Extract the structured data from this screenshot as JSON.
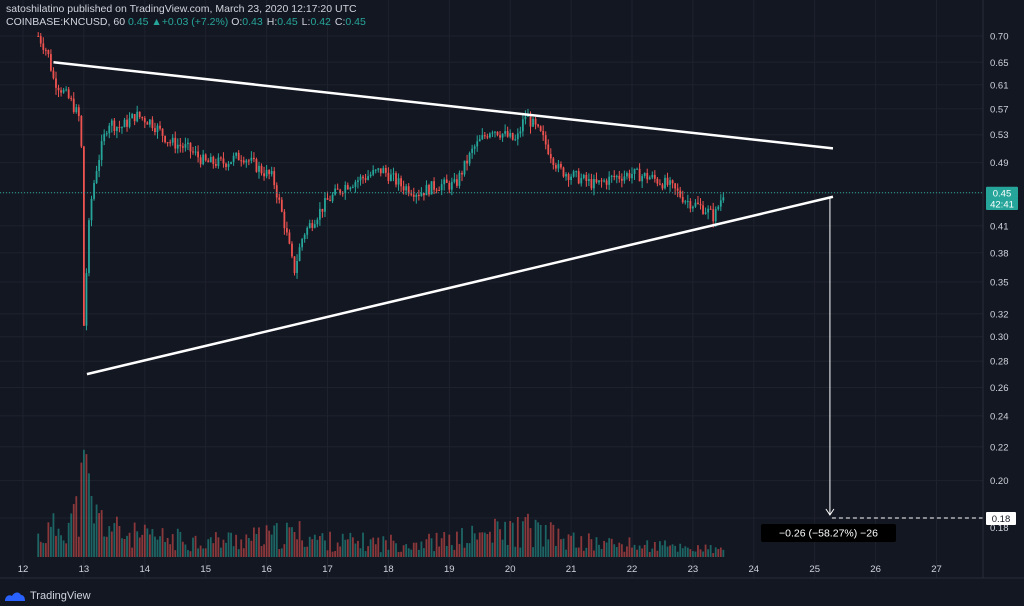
{
  "header": {
    "publisher_line": "satoshilatino published on TradingView.com, March 23, 2020 12:17:20 UTC",
    "symbol": "COINBASE:KNCUSD, 60",
    "last": "0.45",
    "change_arrow": "▲",
    "change": "+0.03 (+7.2%)",
    "o_label": "O:",
    "o_value": "0.43",
    "h_label": "H:",
    "h_value": "0.45",
    "l_label": "L:",
    "l_value": "0.42",
    "c_label": "C:",
    "c_value": "0.45"
  },
  "footer": {
    "brand": "TradingView",
    "icon": "tradingview-logo-icon"
  },
  "chart_data": {
    "type": "candlestick",
    "symbol": "COINBASE:KNCUSD",
    "interval": "60",
    "y_axis_labels": [
      "0.70",
      "0.65",
      "0.61",
      "0.57",
      "0.53",
      "0.49",
      "0.45",
      "0.41",
      "0.38",
      "0.35",
      "0.32",
      "0.30",
      "0.28",
      "0.26",
      "0.24",
      "0.22",
      "0.20",
      "0.18"
    ],
    "x_axis_labels": [
      "12",
      "13",
      "14",
      "15",
      "16",
      "17",
      "18",
      "19",
      "20",
      "21",
      "22",
      "23",
      "24",
      "25",
      "26",
      "27"
    ],
    "price_axis_scale": "log",
    "last_price_label": "0.45",
    "countdown_label": "42:41",
    "target_price_label": "0.18",
    "measure_label": "−0.26 (−58.27%) −26",
    "colors": {
      "up": "#26a69a",
      "down": "#ef5350",
      "background": "#131722",
      "trendline": "#ffffff",
      "grid": "#1e222d"
    },
    "trendlines": [
      {
        "name": "upper-trendline",
        "from": {
          "day": 12.5,
          "price": 0.65
        },
        "to": {
          "day": 25.3,
          "price": 0.51
        }
      },
      {
        "name": "lower-trendline",
        "from": {
          "day": 13.05,
          "price": 0.27
        },
        "to": {
          "day": 25.3,
          "price": 0.445
        }
      }
    ],
    "projection": {
      "from": {
        "day": 25.25,
        "price": 0.445
      },
      "to": {
        "day": 25.25,
        "price": 0.18
      }
    },
    "price_path": [
      [
        12.25,
        0.7
      ],
      [
        12.4,
        0.67
      ],
      [
        12.5,
        0.62
      ],
      [
        12.65,
        0.6
      ],
      [
        12.8,
        0.58
      ],
      [
        12.95,
        0.55
      ],
      [
        13.0,
        0.31
      ],
      [
        13.1,
        0.43
      ],
      [
        13.2,
        0.48
      ],
      [
        13.4,
        0.55
      ],
      [
        13.6,
        0.54
      ],
      [
        13.85,
        0.56
      ],
      [
        14.1,
        0.55
      ],
      [
        14.4,
        0.52
      ],
      [
        14.7,
        0.51
      ],
      [
        15.0,
        0.49
      ],
      [
        15.3,
        0.49
      ],
      [
        15.6,
        0.5
      ],
      [
        15.9,
        0.48
      ],
      [
        16.1,
        0.47
      ],
      [
        16.3,
        0.41
      ],
      [
        16.45,
        0.36
      ],
      [
        16.6,
        0.4
      ],
      [
        16.8,
        0.42
      ],
      [
        17.0,
        0.44
      ],
      [
        17.3,
        0.46
      ],
      [
        17.6,
        0.47
      ],
      [
        17.9,
        0.48
      ],
      [
        18.2,
        0.46
      ],
      [
        18.5,
        0.45
      ],
      [
        18.8,
        0.46
      ],
      [
        19.1,
        0.46
      ],
      [
        19.4,
        0.51
      ],
      [
        19.7,
        0.54
      ],
      [
        19.9,
        0.53
      ],
      [
        20.1,
        0.52
      ],
      [
        20.25,
        0.56
      ],
      [
        20.5,
        0.53
      ],
      [
        20.8,
        0.48
      ],
      [
        21.1,
        0.47
      ],
      [
        21.4,
        0.46
      ],
      [
        21.7,
        0.47
      ],
      [
        22.0,
        0.475
      ],
      [
        22.3,
        0.47
      ],
      [
        22.6,
        0.46
      ],
      [
        22.9,
        0.44
      ],
      [
        23.2,
        0.43
      ],
      [
        23.35,
        0.42
      ],
      [
        23.5,
        0.45
      ]
    ],
    "volume_profile": [
      [
        12.25,
        0.25
      ],
      [
        12.5,
        0.35
      ],
      [
        12.9,
        0.55
      ],
      [
        13.0,
        1.0
      ],
      [
        13.2,
        0.5
      ],
      [
        13.6,
        0.3
      ],
      [
        14.0,
        0.25
      ],
      [
        15.0,
        0.2
      ],
      [
        16.0,
        0.25
      ],
      [
        16.5,
        0.3
      ],
      [
        17.0,
        0.2
      ],
      [
        18.0,
        0.18
      ],
      [
        19.0,
        0.2
      ],
      [
        19.7,
        0.3
      ],
      [
        20.3,
        0.35
      ],
      [
        21.0,
        0.2
      ],
      [
        22.0,
        0.15
      ],
      [
        23.0,
        0.12
      ],
      [
        23.5,
        0.08
      ]
    ]
  }
}
